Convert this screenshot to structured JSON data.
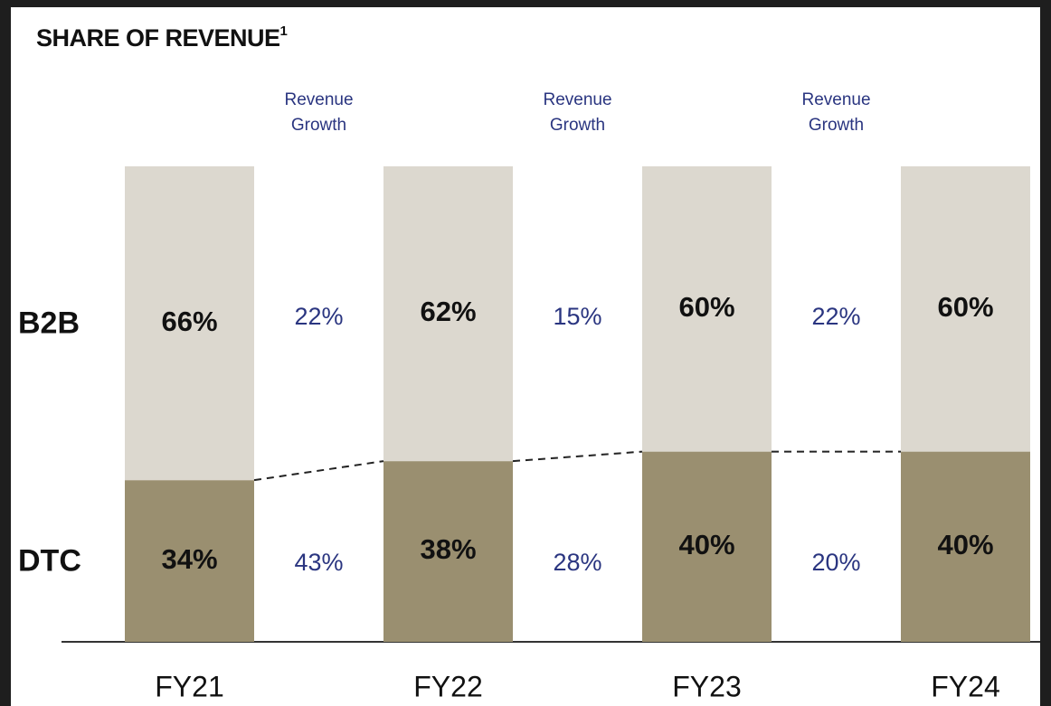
{
  "chart_data": {
    "type": "stacked_bar",
    "title": "SHARE OF REVENUE",
    "title_superscript": "1",
    "categories": [
      "FY21",
      "FY22",
      "FY23",
      "FY24"
    ],
    "series": [
      {
        "name": "DTC",
        "color": "#9a8f70",
        "values": [
          34,
          38,
          40,
          40
        ],
        "value_labels": [
          "34%",
          "38%",
          "40%",
          "40%"
        ]
      },
      {
        "name": "B2B",
        "color": "#dcd8cf",
        "values": [
          66,
          62,
          60,
          60
        ],
        "value_labels": [
          "66%",
          "62%",
          "60%",
          "60%"
        ]
      }
    ],
    "ylim": [
      0,
      100
    ],
    "connector_lines": "dashed",
    "growth": [
      {
        "header": [
          "Revenue",
          "Growth"
        ],
        "values": [
          "22%",
          "43%"
        ]
      },
      {
        "header": [
          "Revenue",
          "Growth"
        ],
        "values": [
          "15%",
          "28%"
        ]
      },
      {
        "header": [
          "Revenue",
          "Growth"
        ],
        "values": [
          "22%",
          "20%"
        ]
      }
    ]
  }
}
